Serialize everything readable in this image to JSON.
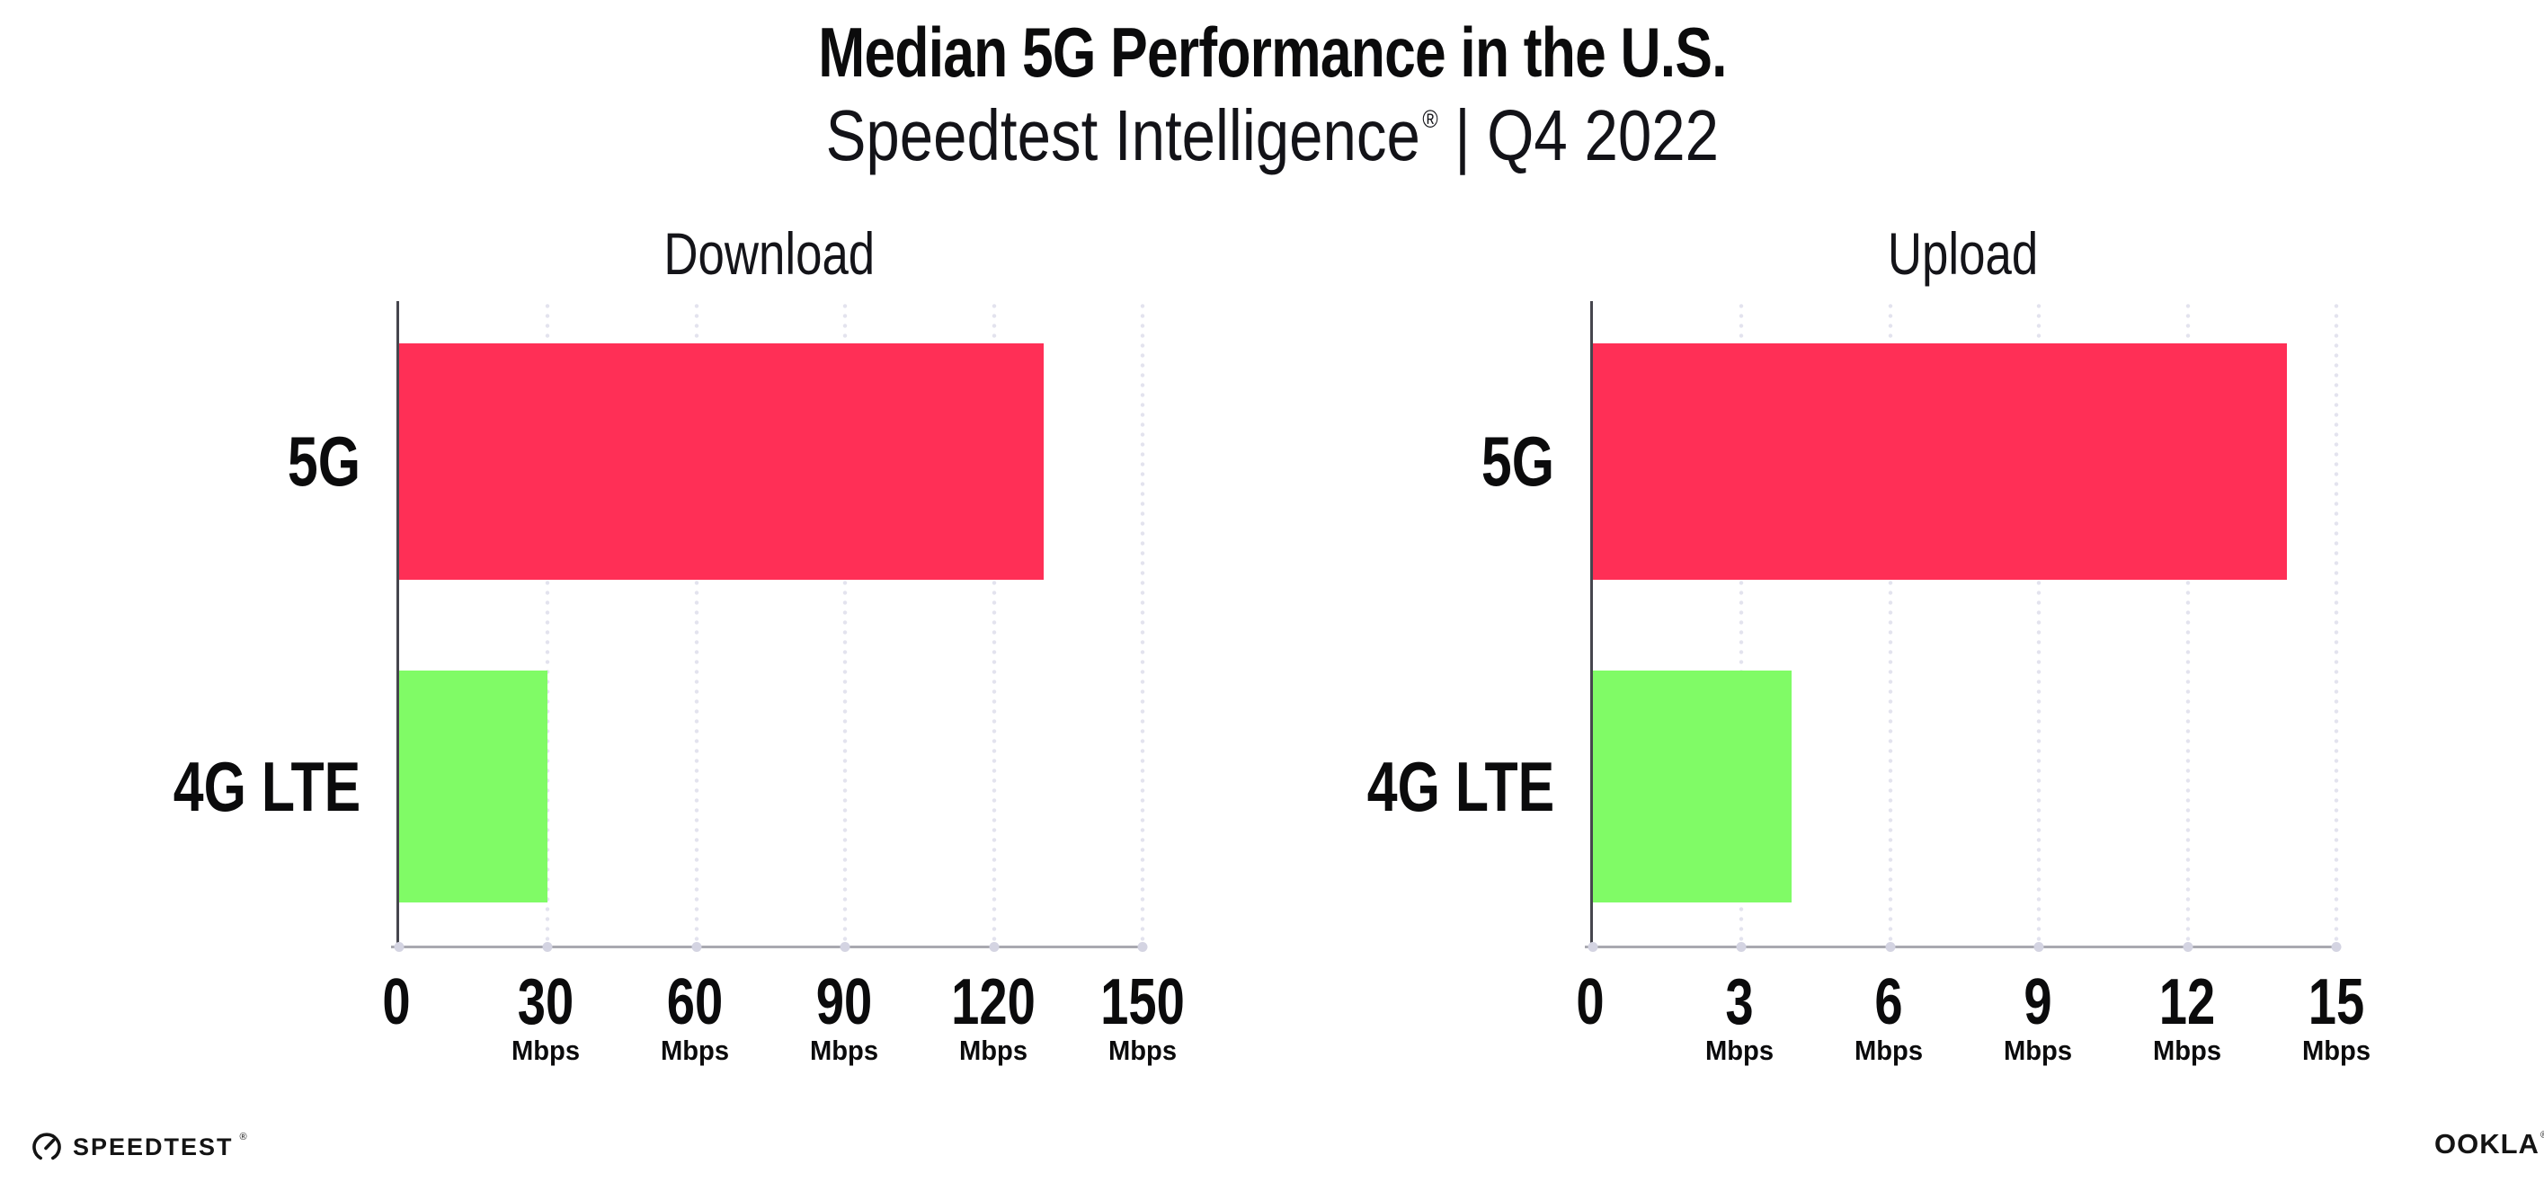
{
  "header": {
    "title": "Median 5G Performance in the U.S.",
    "subtitle_brand": "Speedtest Intelligence",
    "subtitle_reg": "®",
    "subtitle_separator": "|",
    "subtitle_period": "Q4 2022"
  },
  "colors": {
    "bar_5g": "#ff2f56",
    "bar_4g_lte": "#80fb66",
    "gridline": "#e3e3ee",
    "axis_tick_dot": "#d4d4e2",
    "y_axis": "#46464e",
    "x_axis": "#a9a9b0",
    "text": "#0b0b0c",
    "background": "#ffffff"
  },
  "chart_data": [
    {
      "type": "bar",
      "orientation": "horizontal",
      "title": "Download",
      "categories": [
        "5G",
        "4G LTE"
      ],
      "values": [
        130,
        30
      ],
      "unit": "Mbps",
      "xlim": [
        0,
        150
      ],
      "xticks": [
        0,
        30,
        60,
        90,
        120,
        150
      ],
      "bar_colors": [
        "#ff2f56",
        "#80fb66"
      ],
      "grid": "vertical-dotted",
      "legend": "none",
      "xlabel": "",
      "ylabel": ""
    },
    {
      "type": "bar",
      "orientation": "horizontal",
      "title": "Upload",
      "categories": [
        "5G",
        "4G LTE"
      ],
      "values": [
        14,
        4
      ],
      "unit": "Mbps",
      "xlim": [
        0,
        15
      ],
      "xticks": [
        0,
        3,
        6,
        9,
        12,
        15
      ],
      "bar_colors": [
        "#ff2f56",
        "#80fb66"
      ],
      "grid": "vertical-dotted",
      "legend": "none",
      "xlabel": "",
      "ylabel": ""
    }
  ],
  "footer": {
    "speedtest_label": "SPEEDTEST",
    "speedtest_mark": "®",
    "ookla_label": "OOKLA",
    "ookla_mark": "®"
  }
}
